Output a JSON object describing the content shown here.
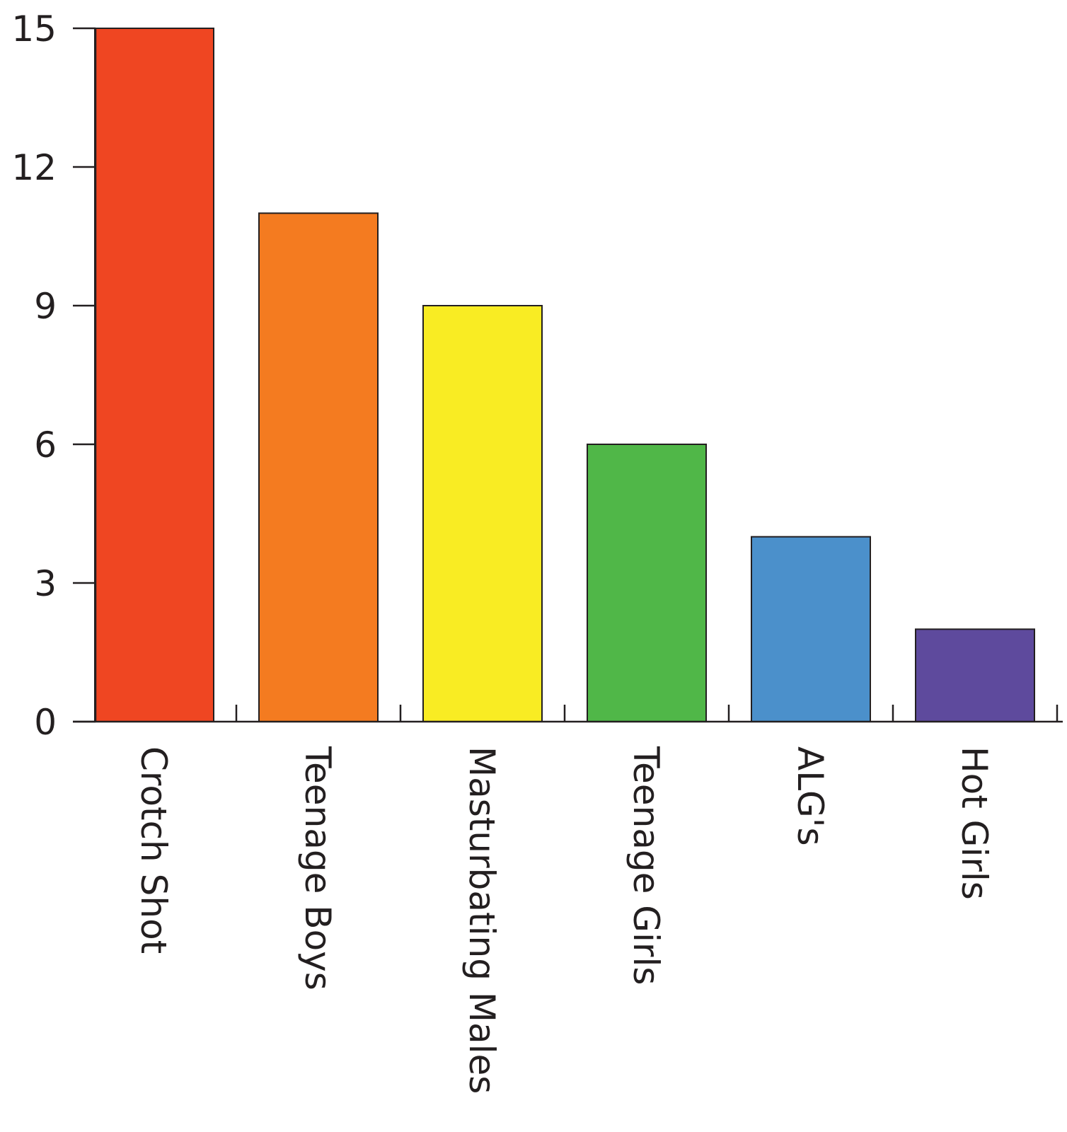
{
  "chart_data": {
    "type": "bar",
    "title": "",
    "xlabel": "",
    "ylabel": "",
    "categories": [
      "Crotch Shot",
      "Teenage Boys",
      "Masturbating Males",
      "Teenage Girls",
      "ALG's",
      "Hot Girls"
    ],
    "values": [
      15,
      11,
      9,
      6,
      4,
      2
    ],
    "colors": [
      "#ef4622",
      "#f47b20",
      "#f9ec23",
      "#50b748",
      "#4b90cb",
      "#5e4a9d"
    ],
    "ylim": [
      0,
      15
    ],
    "yticks": [
      0,
      3,
      6,
      9,
      12,
      15
    ],
    "grid": false,
    "legend": "none"
  }
}
